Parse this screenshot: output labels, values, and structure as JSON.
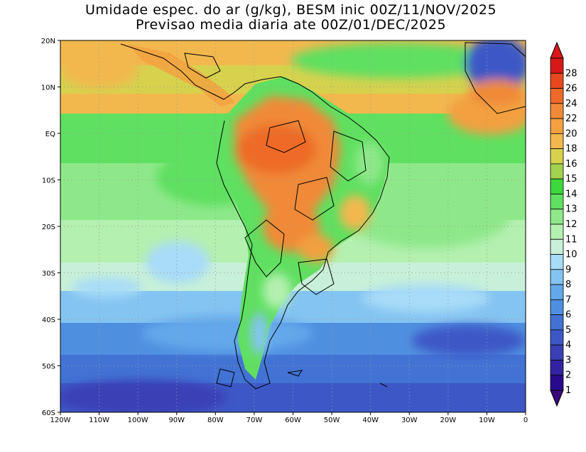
{
  "title_line1": "Umidade espec. do ar (g/kg), BESM inic 00Z/11/NOV/2025",
  "title_line2": "Previsao media diaria ate 00Z/01/DEC/2025",
  "map": {
    "lon_ticks": [
      "120W",
      "110W",
      "100W",
      "90W",
      "80W",
      "70W",
      "60W",
      "50W",
      "40W",
      "30W",
      "20W",
      "10W",
      "0"
    ],
    "lat_ticks": [
      "20N",
      "10N",
      "EQ",
      "10S",
      "20S",
      "30S",
      "40S",
      "50S",
      "60S"
    ],
    "extent": {
      "lon": [
        -120,
        0
      ],
      "lat": [
        -60,
        20
      ]
    }
  },
  "colorbar": {
    "labels": [
      "1",
      "2",
      "3",
      "4",
      "5",
      "6",
      "7",
      "8",
      "9",
      "10",
      "11",
      "12",
      "13",
      "14",
      "15",
      "16",
      "18",
      "20",
      "22",
      "24",
      "26",
      "28"
    ],
    "colors": [
      "#2a0a8c",
      "#3323a3",
      "#3a3fb5",
      "#3d58c6",
      "#4273d4",
      "#4f8fe0",
      "#63a8ea",
      "#84c4f2",
      "#a8dcf8",
      "#c8f0d8",
      "#b4f0b0",
      "#8ee88a",
      "#5fe060",
      "#3cd83c",
      "#a2d24e",
      "#d6d24e",
      "#f2b84e",
      "#f2a040",
      "#f08a38",
      "#ee6a28",
      "#e84820",
      "#d81818"
    ]
  }
}
